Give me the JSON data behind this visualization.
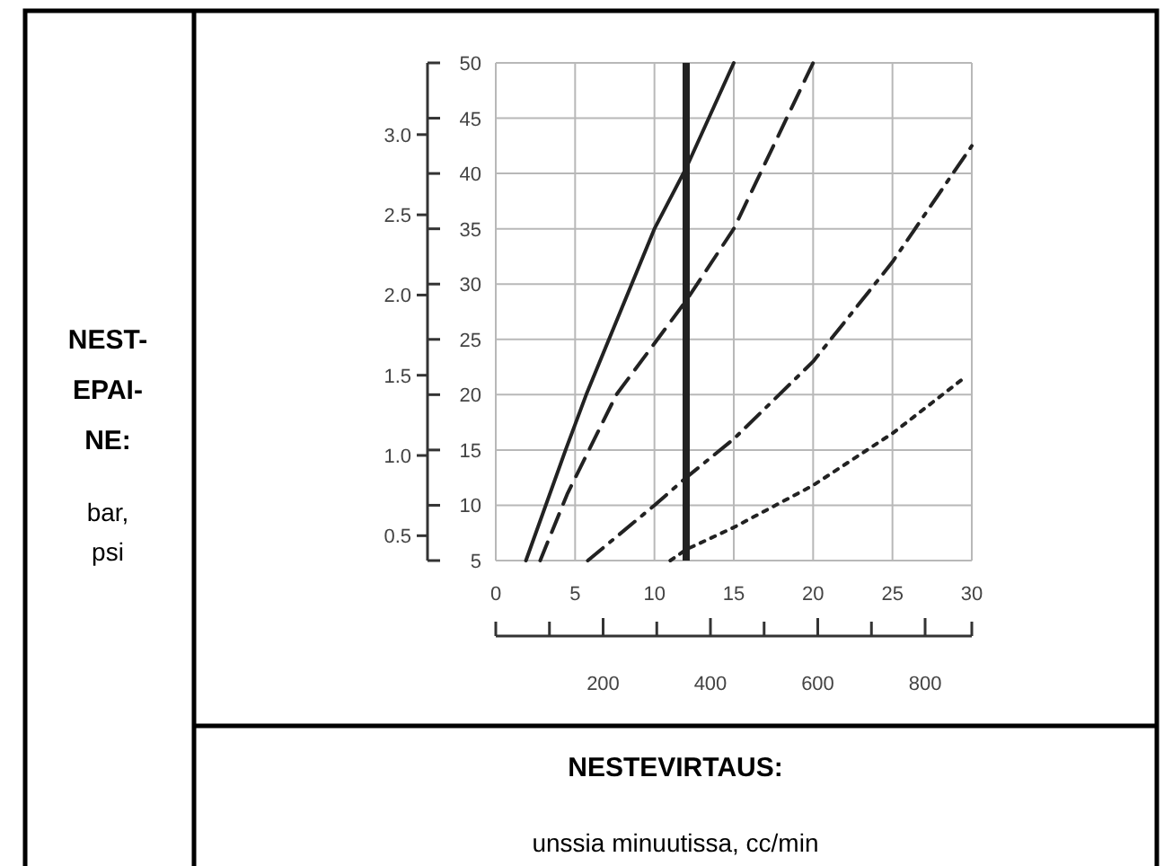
{
  "chart_data": {
    "type": "line",
    "xlabel": "NESTEVIRTAUS: unssia minuutissa, cc/min",
    "ylabel": "NEST-EPAI-NE: bar, psi",
    "xlim": [
      0,
      30
    ],
    "xticks": [
      0,
      5,
      10,
      15,
      20,
      25,
      30
    ],
    "x2lim": [
      0,
      887
    ],
    "x2ticks": [
      {
        "value": 0,
        "label": null
      },
      {
        "value": 100,
        "label": null
      },
      200,
      {
        "value": 300,
        "label": null
      },
      400,
      {
        "value": 500,
        "label": null
      },
      600,
      {
        "value": 700,
        "label": null
      },
      800,
      {
        "value": 887,
        "label": null
      }
    ],
    "ylim": [
      5,
      50
    ],
    "yticks": [
      5,
      10,
      15,
      20,
      25,
      30,
      35,
      40,
      45,
      50
    ],
    "y2lim": [
      0.345,
      3.447
    ],
    "y2ticks": [
      {
        "value": 0.5,
        "label": "0.5"
      },
      {
        "value": 1.0,
        "label": "1.0"
      },
      {
        "value": 1.5,
        "label": "1.5"
      },
      {
        "value": 2.0,
        "label": "2.0"
      },
      {
        "value": 2.5,
        "label": "2.5"
      },
      {
        "value": 3.0,
        "label": "3.0"
      }
    ],
    "grid": true,
    "ref_lines": [
      {
        "axis": "x",
        "value": 12,
        "color": "#222222"
      }
    ],
    "series": [
      {
        "color": "#222222",
        "line_style": "solid",
        "x": [
          1.9,
          4.4,
          5.7,
          10,
          12,
          15
        ],
        "values": [
          5,
          15,
          20,
          35,
          40.5,
          50
        ]
      },
      {
        "color": "#222222",
        "line_style": "dashed",
        "x": [
          2.8,
          4.5,
          7.6,
          12,
          15,
          20
        ],
        "values": [
          5,
          11,
          20,
          28.5,
          35,
          50
        ]
      },
      {
        "color": "#222222",
        "line_style": "dashdot",
        "x": [
          5.8,
          10,
          12,
          15,
          20,
          25,
          30
        ],
        "values": [
          5,
          10,
          12.5,
          16,
          23,
          32,
          42.5
        ]
      },
      {
        "color": "#222222",
        "line_style": "dotted",
        "x": [
          11,
          12,
          15,
          20,
          25,
          29.5
        ],
        "values": [
          5,
          6,
          8,
          11.8,
          16.5,
          21.5
        ]
      }
    ]
  }
}
